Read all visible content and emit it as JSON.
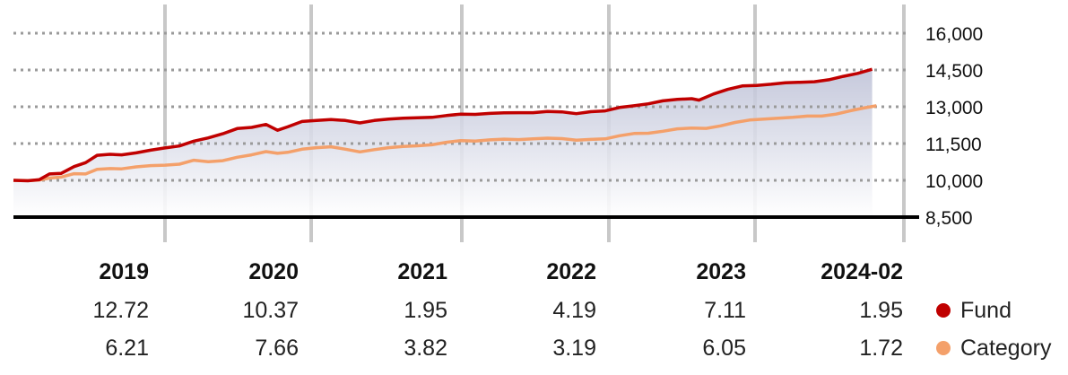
{
  "chart_data": {
    "type": "area",
    "y_ticks": [
      "16,000",
      "14,500",
      "13,000",
      "11,500",
      "10,000",
      "8,500"
    ],
    "ylim": [
      8500,
      16000
    ],
    "x_range": [
      2018.0,
      2024.17
    ],
    "grid": true,
    "series": [
      {
        "name": "Fund",
        "color": "#c00000",
        "points": [
          [
            2018.0,
            10000
          ],
          [
            2018.1,
            9980
          ],
          [
            2018.18,
            10030
          ],
          [
            2018.25,
            10260
          ],
          [
            2018.33,
            10280
          ],
          [
            2018.42,
            10560
          ],
          [
            2018.5,
            10720
          ],
          [
            2018.58,
            11020
          ],
          [
            2018.67,
            11060
          ],
          [
            2018.75,
            11040
          ],
          [
            2018.85,
            11120
          ],
          [
            2018.95,
            11230
          ],
          [
            2019.05,
            11320
          ],
          [
            2019.15,
            11400
          ],
          [
            2019.25,
            11600
          ],
          [
            2019.35,
            11730
          ],
          [
            2019.45,
            11900
          ],
          [
            2019.55,
            12110
          ],
          [
            2019.65,
            12160
          ],
          [
            2019.75,
            12280
          ],
          [
            2019.83,
            12040
          ],
          [
            2019.9,
            12180
          ],
          [
            2020.0,
            12400
          ],
          [
            2020.1,
            12440
          ],
          [
            2020.2,
            12480
          ],
          [
            2020.3,
            12440
          ],
          [
            2020.4,
            12340
          ],
          [
            2020.5,
            12440
          ],
          [
            2020.6,
            12500
          ],
          [
            2020.7,
            12530
          ],
          [
            2020.8,
            12550
          ],
          [
            2020.9,
            12570
          ],
          [
            2021.0,
            12640
          ],
          [
            2021.1,
            12700
          ],
          [
            2021.2,
            12690
          ],
          [
            2021.3,
            12730
          ],
          [
            2021.4,
            12750
          ],
          [
            2021.5,
            12760
          ],
          [
            2021.6,
            12760
          ],
          [
            2021.7,
            12810
          ],
          [
            2021.8,
            12790
          ],
          [
            2021.9,
            12720
          ],
          [
            2022.0,
            12800
          ],
          [
            2022.1,
            12830
          ],
          [
            2022.2,
            12970
          ],
          [
            2022.3,
            13040
          ],
          [
            2022.4,
            13120
          ],
          [
            2022.5,
            13240
          ],
          [
            2022.6,
            13300
          ],
          [
            2022.7,
            13330
          ],
          [
            2022.75,
            13270
          ],
          [
            2022.85,
            13520
          ],
          [
            2022.95,
            13710
          ],
          [
            2023.05,
            13850
          ],
          [
            2023.15,
            13870
          ],
          [
            2023.25,
            13920
          ],
          [
            2023.35,
            13980
          ],
          [
            2023.45,
            14000
          ],
          [
            2023.55,
            14020
          ],
          [
            2023.65,
            14100
          ],
          [
            2023.75,
            14240
          ],
          [
            2023.85,
            14360
          ],
          [
            2023.95,
            14530
          ]
        ]
      },
      {
        "name": "Category",
        "color": "#f4a06a",
        "points": [
          [
            2018.0,
            10000
          ],
          [
            2018.1,
            9990
          ],
          [
            2018.18,
            10010
          ],
          [
            2018.25,
            10090
          ],
          [
            2018.33,
            10130
          ],
          [
            2018.42,
            10270
          ],
          [
            2018.5,
            10260
          ],
          [
            2018.58,
            10450
          ],
          [
            2018.67,
            10480
          ],
          [
            2018.75,
            10470
          ],
          [
            2018.85,
            10550
          ],
          [
            2018.95,
            10600
          ],
          [
            2019.05,
            10620
          ],
          [
            2019.15,
            10660
          ],
          [
            2019.25,
            10820
          ],
          [
            2019.35,
            10760
          ],
          [
            2019.45,
            10800
          ],
          [
            2019.55,
            10940
          ],
          [
            2019.65,
            11040
          ],
          [
            2019.75,
            11170
          ],
          [
            2019.83,
            11100
          ],
          [
            2019.9,
            11140
          ],
          [
            2020.0,
            11270
          ],
          [
            2020.1,
            11330
          ],
          [
            2020.2,
            11370
          ],
          [
            2020.3,
            11270
          ],
          [
            2020.4,
            11160
          ],
          [
            2020.5,
            11250
          ],
          [
            2020.6,
            11330
          ],
          [
            2020.7,
            11380
          ],
          [
            2020.8,
            11410
          ],
          [
            2020.9,
            11450
          ],
          [
            2021.0,
            11550
          ],
          [
            2021.1,
            11620
          ],
          [
            2021.2,
            11600
          ],
          [
            2021.3,
            11650
          ],
          [
            2021.4,
            11680
          ],
          [
            2021.5,
            11660
          ],
          [
            2021.6,
            11690
          ],
          [
            2021.7,
            11720
          ],
          [
            2021.8,
            11700
          ],
          [
            2021.9,
            11640
          ],
          [
            2022.0,
            11670
          ],
          [
            2022.1,
            11690
          ],
          [
            2022.2,
            11820
          ],
          [
            2022.3,
            11910
          ],
          [
            2022.4,
            11920
          ],
          [
            2022.5,
            12000
          ],
          [
            2022.6,
            12100
          ],
          [
            2022.7,
            12130
          ],
          [
            2022.8,
            12120
          ],
          [
            2022.9,
            12220
          ],
          [
            2023.0,
            12360
          ],
          [
            2023.1,
            12460
          ],
          [
            2023.2,
            12500
          ],
          [
            2023.3,
            12530
          ],
          [
            2023.4,
            12570
          ],
          [
            2023.5,
            12620
          ],
          [
            2023.6,
            12620
          ],
          [
            2023.7,
            12700
          ],
          [
            2023.8,
            12840
          ],
          [
            2023.9,
            12960
          ],
          [
            2023.98,
            13040
          ]
        ]
      }
    ],
    "table": {
      "columns": [
        "2019",
        "2020",
        "2021",
        "2022",
        "2023",
        "2024-02"
      ],
      "rows": [
        {
          "name": "Fund",
          "values": [
            "12.72",
            "10.37",
            "1.95",
            "4.19",
            "7.11",
            "1.95"
          ]
        },
        {
          "name": "Category",
          "values": [
            "6.21",
            "7.66",
            "3.82",
            "3.19",
            "6.05",
            "1.72"
          ]
        }
      ]
    }
  },
  "legend": [
    {
      "label": "Fund",
      "color": "#c00000"
    },
    {
      "label": "Category",
      "color": "#f4a06a"
    }
  ]
}
